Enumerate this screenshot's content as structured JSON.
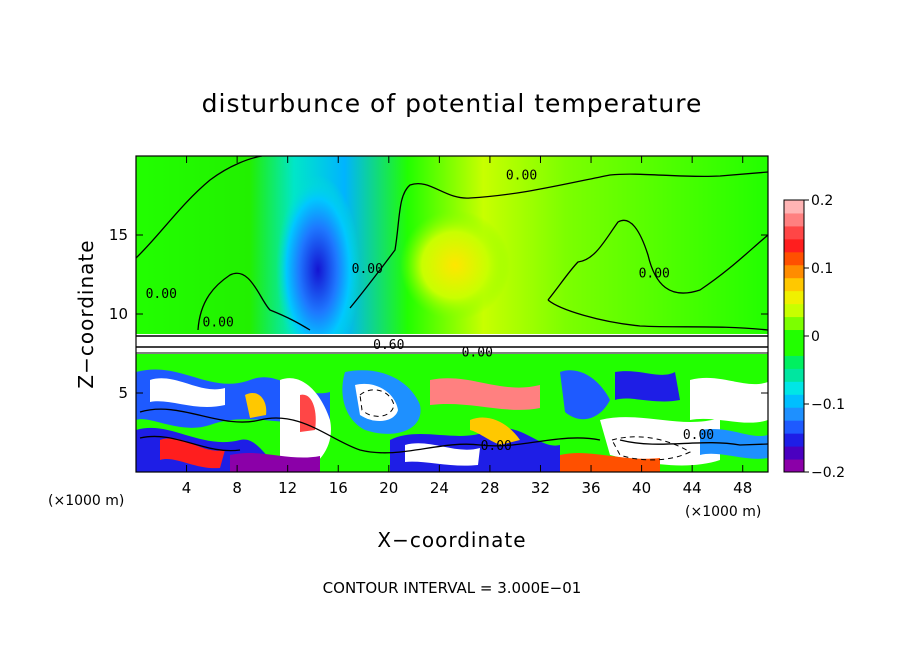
{
  "chart_data": {
    "type": "heatmap",
    "title": "disturbunce of potential temperature",
    "xlabel": "X−coordinate",
    "ylabel": "Z−coordinate",
    "x_unit": "(×1000 m)",
    "y_unit": "(×1000 m)",
    "xlim": [
      0,
      50
    ],
    "ylim": [
      0,
      20
    ],
    "x_ticks": [
      4,
      8,
      12,
      16,
      20,
      24,
      28,
      32,
      36,
      40,
      44,
      48
    ],
    "y_ticks": [
      5,
      10,
      15
    ],
    "footnote": "CONTOUR INTERVAL = 3.000E−01",
    "colorbar": {
      "range": [
        -0.2,
        0.2
      ],
      "ticks": [
        {
          "value": 0.2,
          "label": "0.2"
        },
        {
          "value": 0.1,
          "label": "0.1"
        },
        {
          "value": 0.0,
          "label": "0"
        },
        {
          "value": -0.1,
          "label": "−0.1"
        },
        {
          "value": -0.2,
          "label": "−0.2"
        }
      ],
      "colors": [
        "#8b00a8",
        "#4a00c0",
        "#1e1ee6",
        "#1e5aff",
        "#1e90ff",
        "#00bfff",
        "#00e6e6",
        "#00e6a0",
        "#00f060",
        "#22ff00",
        "#22ff00",
        "#7cff00",
        "#c8ff00",
        "#f0f000",
        "#ffc800",
        "#ff8c00",
        "#ff5000",
        "#ff1e1e",
        "#ff4646",
        "#ff8080",
        "#ffb4b4"
      ]
    },
    "contour_labels": [
      {
        "text": "0.00",
        "x": 30.5,
        "z": 18.5
      },
      {
        "text": "0.00",
        "x": 2.0,
        "z": 11.0
      },
      {
        "text": "0.00",
        "x": 18.3,
        "z": 12.6
      },
      {
        "text": "0.00",
        "x": 41.0,
        "z": 12.3
      },
      {
        "text": "0.00",
        "x": 6.5,
        "z": 9.2
      },
      {
        "text": "0.60",
        "x": 20.0,
        "z": 7.8
      },
      {
        "text": "0.00",
        "x": 27.0,
        "z": 7.3
      },
      {
        "text": "0.00",
        "x": 28.5,
        "z": 1.4
      },
      {
        "text": "0.00",
        "x": 44.5,
        "z": 2.1
      }
    ]
  }
}
